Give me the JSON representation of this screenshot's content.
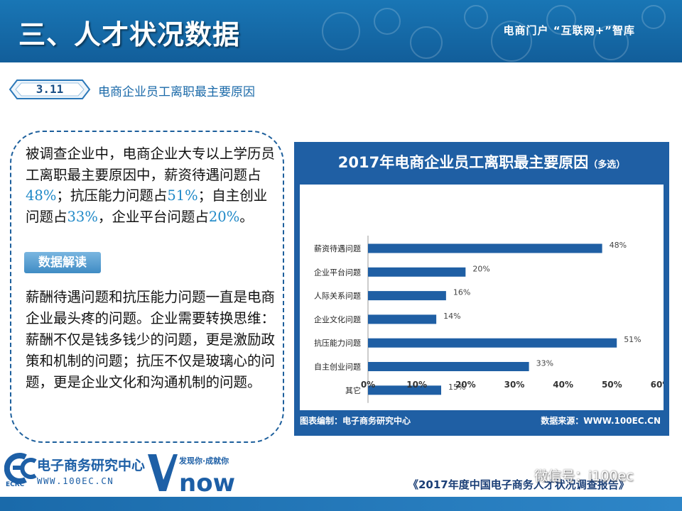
{
  "header": {
    "title": "三、人才状况数据",
    "brand": "电商门户  “互联网+”智库"
  },
  "section": {
    "number": "3.11",
    "title": "电商企业员工离职最主要原因"
  },
  "summary": {
    "part1": "被调查企业中，电商企业大专以上学历员工离职最主要原因中，薪资待遇问题占",
    "pct1": "48%",
    "part2": "；抗压能力问题占",
    "pct2": "51%",
    "part3": "；自主创业问题占",
    "pct3": "33%",
    "part4": "，企业平台问题占",
    "pct4": "20%",
    "part5": "。"
  },
  "badge": "数据解读",
  "interpretation": "薪酬待遇问题和抗压能力问题一直是电商企业最头疼的问题。企业需要转换思维：薪酬不仅是钱多钱少的问题，更是激励政策和机制的问题；抗压不仅是玻璃心的问题，更是企业文化和沟通机制的问题。",
  "chart_panel": {
    "title_main": "2017年电商企业员工离职最主要原因",
    "title_note": "（多选）",
    "footer_left": "图表编制：电子商务研究中心",
    "footer_right": "数据来源：WWW.100EC.CN"
  },
  "chart_data": {
    "type": "bar",
    "orientation": "horizontal",
    "title": "2017年电商企业员工离职最主要原因（多选）",
    "categories": [
      "薪资待遇问题",
      "企业平台问题",
      "人际关系问题",
      "企业文化问题",
      "抗压能力问题",
      "自主创业问题",
      "其它"
    ],
    "values": [
      48,
      20,
      16,
      14,
      51,
      33,
      15
    ],
    "value_labels": [
      "48%",
      "20%",
      "16%",
      "14%",
      "51%",
      "33%",
      "15%"
    ],
    "xlim": [
      0,
      60
    ],
    "x_ticks": [
      "0%",
      "10%",
      "20%",
      "30%",
      "40%",
      "50%",
      "60%"
    ],
    "grid": false,
    "bar_color": "#1f5fa4"
  },
  "footer": {
    "ecrc_name": "电子商务研究中心",
    "ecrc_web": "WWW.100EC.CN",
    "ecrc_abbr": "ECRC",
    "vnow_slogan": "发现你·成就你",
    "report_title": "《2017年度中国电子商务人才状况调查报告》",
    "watermark": "微信号：i100ec"
  },
  "colors": {
    "header_blue": "#1670b0",
    "accent_blue": "#1e88c7",
    "chart_blue": "#1f5fa4"
  }
}
